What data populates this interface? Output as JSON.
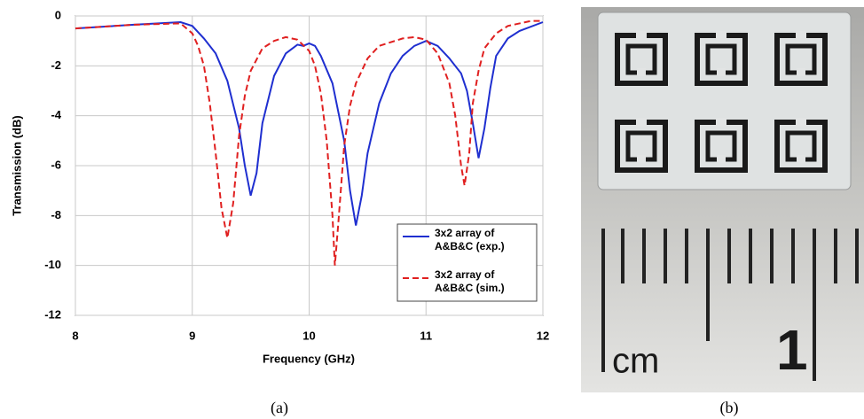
{
  "chart_data": {
    "type": "line",
    "xlabel": "Frequency (GHz)",
    "ylabel": "Transmission (dB)",
    "xlim": [
      8,
      12
    ],
    "ylim": [
      -12,
      0
    ],
    "xticks": [
      8,
      9,
      10,
      11,
      12
    ],
    "yticks": [
      -12,
      -10,
      -8,
      -6,
      -4,
      -2,
      0
    ],
    "grid": true,
    "legend": "lower right",
    "series": [
      {
        "name": "3x2 array of A&B&C (exp.)",
        "color": "#1f2fd0",
        "dash": "solid",
        "x": [
          8,
          8.5,
          8.9,
          9.0,
          9.1,
          9.2,
          9.3,
          9.4,
          9.45,
          9.5,
          9.55,
          9.6,
          9.7,
          9.8,
          9.9,
          9.95,
          10.0,
          10.05,
          10.1,
          10.2,
          10.3,
          10.35,
          10.4,
          10.45,
          10.5,
          10.6,
          10.7,
          10.8,
          10.9,
          11.0,
          11.1,
          11.2,
          11.3,
          11.35,
          11.4,
          11.45,
          11.5,
          11.55,
          11.6,
          11.7,
          11.8,
          12.0
        ],
        "values": [
          -0.5,
          -0.35,
          -0.25,
          -0.4,
          -0.9,
          -1.5,
          -2.6,
          -4.5,
          -6,
          -7.2,
          -6.3,
          -4.3,
          -2.4,
          -1.5,
          -1.15,
          -1.2,
          -1.1,
          -1.2,
          -1.6,
          -2.7,
          -5.0,
          -7,
          -8.4,
          -7.2,
          -5.5,
          -3.5,
          -2.3,
          -1.6,
          -1.2,
          -1.0,
          -1.2,
          -1.7,
          -2.3,
          -3,
          -4.3,
          -5.7,
          -4.5,
          -2.9,
          -1.6,
          -0.9,
          -0.6,
          -0.25
        ]
      },
      {
        "name": "3x2 array of A&B&C (sim.)",
        "color": "#e02020",
        "dash": "dashed",
        "x": [
          8,
          8.5,
          8.9,
          9.0,
          9.05,
          9.1,
          9.15,
          9.2,
          9.25,
          9.3,
          9.35,
          9.4,
          9.45,
          9.5,
          9.6,
          9.7,
          9.8,
          9.9,
          10.0,
          10.05,
          10.1,
          10.15,
          10.2,
          10.22,
          10.25,
          10.3,
          10.35,
          10.4,
          10.5,
          10.6,
          10.8,
          10.9,
          11.0,
          11.1,
          11.2,
          11.25,
          11.3,
          11.33,
          11.37,
          11.4,
          11.45,
          11.5,
          11.6,
          11.7,
          11.9,
          12.0
        ],
        "values": [
          -0.5,
          -0.35,
          -0.3,
          -0.7,
          -1.2,
          -2.0,
          -3.5,
          -5.5,
          -7.7,
          -8.9,
          -7.5,
          -4.8,
          -3.2,
          -2.2,
          -1.3,
          -1.0,
          -0.85,
          -0.95,
          -1.4,
          -2,
          -3.1,
          -5,
          -8,
          -10.0,
          -8.3,
          -5.2,
          -3.6,
          -2.7,
          -1.7,
          -1.2,
          -0.9,
          -0.85,
          -0.95,
          -1.5,
          -2.7,
          -4,
          -6,
          -6.8,
          -5.5,
          -3.5,
          -2.2,
          -1.3,
          -0.7,
          -0.4,
          -0.2,
          -0.2
        ]
      }
    ]
  },
  "captions": {
    "a": "(a)",
    "b": "(b)"
  },
  "photo": {
    "ruler_unit": "cm",
    "ruler_number": "1"
  }
}
